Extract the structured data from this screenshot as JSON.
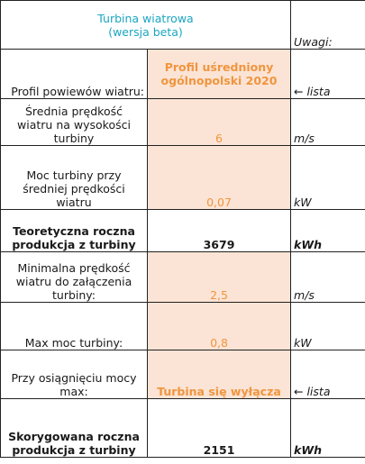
{
  "header": {
    "title_line1": "Turbina wiatrowa",
    "title_line2": "(wersja beta)",
    "notes_label": "Uwagi:"
  },
  "rows": {
    "wind_profile": {
      "label": "Profil powiewów wiatru:",
      "value_line1": "Profil uśredniony",
      "value_line2": "ogólnopolski 2020",
      "note": "← lista"
    },
    "avg_wind_speed": {
      "label_line1": "Średnia prędkość",
      "label_line2": "wiatru na wysokości",
      "label_line3": "turbiny",
      "value": "6",
      "unit": "m/s"
    },
    "turbine_power": {
      "label_line1": "Moc turbiny przy",
      "label_line2": "średniej prędkości",
      "label_line3": "wiatru",
      "value": "0,07",
      "unit": "kW"
    },
    "theoretical_output": {
      "label_line1": "Teoretyczna roczna",
      "label_line2": "produkcja z turbiny",
      "value": "3679",
      "unit": "kWh"
    },
    "min_wind_speed": {
      "label_line1": "Minimalna prędkość",
      "label_line2": "wiatru do załączenia",
      "label_line3": "turbiny:",
      "value": "2,5",
      "unit": "m/s"
    },
    "max_power": {
      "label": "Max moc turbiny:",
      "value": "0,8",
      "unit": "kW"
    },
    "at_max_power": {
      "label_line1": "Przy osiągnięciu mocy",
      "label_line2": "max:",
      "value": "Turbina się wyłącza",
      "note": "← lista"
    },
    "corrected_output": {
      "label_line1": "Skorygowana roczna",
      "label_line2": "produkcja z turbiny",
      "value": "2151",
      "unit": "kWh"
    }
  }
}
